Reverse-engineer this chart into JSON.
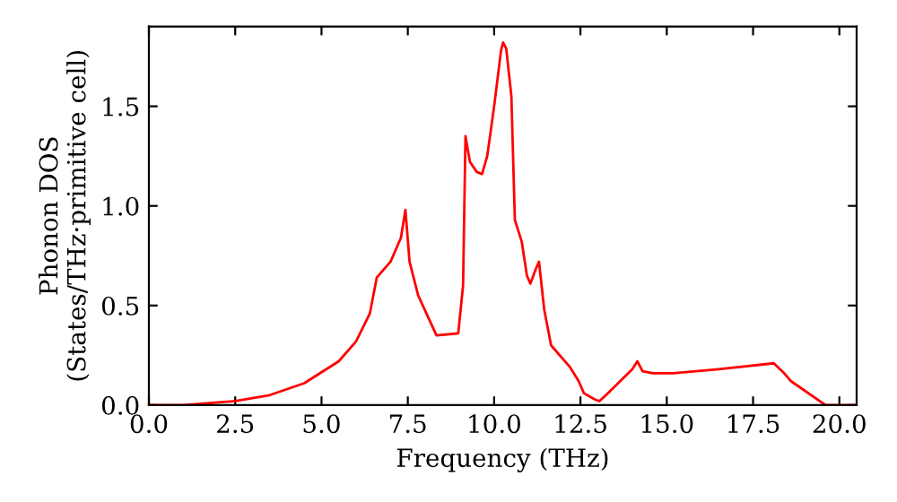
{
  "chart_data": {
    "type": "line",
    "xlabel": "Frequency (THz)",
    "ylabel": "Phonon DOS\n(States/THz·primitive cell)",
    "xlim": [
      0,
      20.5
    ],
    "ylim": [
      0,
      1.9
    ],
    "xticks": [
      {
        "value": 0,
        "label": "0.0"
      },
      {
        "value": 2.5,
        "label": "2.5"
      },
      {
        "value": 5,
        "label": "5.0"
      },
      {
        "value": 7.5,
        "label": "7.5"
      },
      {
        "value": 10,
        "label": "10.0"
      },
      {
        "value": 12.5,
        "label": "12.5"
      },
      {
        "value": 15,
        "label": "15.0"
      },
      {
        "value": 17.5,
        "label": "17.5"
      },
      {
        "value": 20,
        "label": "20.0"
      }
    ],
    "yticks": [
      {
        "value": 0,
        "label": "0.0"
      },
      {
        "value": 0.5,
        "label": "0.5"
      },
      {
        "value": 1,
        "label": "1.0"
      },
      {
        "value": 1.5,
        "label": "1.5"
      }
    ],
    "grid": false,
    "legend": false,
    "marker": "none",
    "line_style": "solid",
    "series": [
      {
        "color": "#ff0000",
        "x": [
          0,
          1,
          2.5,
          3.5,
          4.5,
          5.5,
          6,
          6.4,
          6.6,
          7,
          7.3,
          7.43,
          7.55,
          7.8,
          8.33,
          8.96,
          9.1,
          9.17,
          9.3,
          9.5,
          9.65,
          9.8,
          10,
          10.2,
          10.26,
          10.35,
          10.5,
          10.6,
          10.8,
          10.95,
          11.05,
          11.2,
          11.3,
          11.45,
          11.65,
          12.2,
          12.45,
          12.6,
          12.9,
          13.05,
          13.3,
          14,
          14.15,
          14.3,
          14.6,
          15.2,
          16.5,
          18.1,
          18.4,
          18.6,
          19.6,
          20.5
        ],
        "values": [
          0,
          0,
          0.02,
          0.05,
          0.11,
          0.22,
          0.32,
          0.46,
          0.64,
          0.72,
          0.84,
          0.98,
          0.72,
          0.55,
          0.35,
          0.36,
          0.6,
          1.35,
          1.22,
          1.17,
          1.16,
          1.25,
          1.5,
          1.78,
          1.82,
          1.79,
          1.55,
          0.93,
          0.82,
          0.65,
          0.61,
          0.68,
          0.72,
          0.48,
          0.3,
          0.19,
          0.12,
          0.06,
          0.03,
          0.02,
          0.06,
          0.18,
          0.22,
          0.17,
          0.16,
          0.16,
          0.18,
          0.21,
          0.16,
          0.12,
          0,
          0
        ]
      }
    ]
  }
}
